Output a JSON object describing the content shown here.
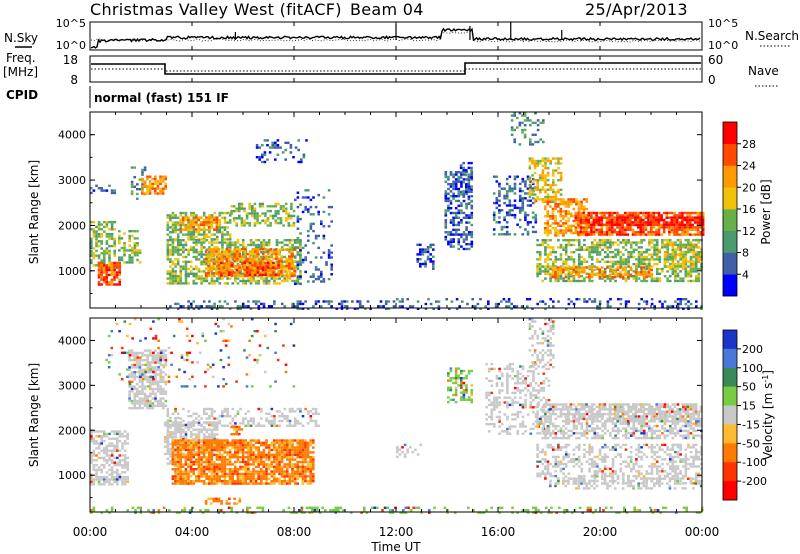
{
  "header": {
    "radar": "Christmas Valley West (fitACF)",
    "beam": "Beam 04",
    "date": "25/Apr/2013"
  },
  "params": {
    "nsky_label": "N.Sky",
    "nsearch_label": "N.Search",
    "nsky_ticks": [
      "10^5",
      "10^0"
    ],
    "nsearch_ticks": [
      "10^5",
      "10^0"
    ],
    "freq_label": "Freq.",
    "freq_unit": "[MHz]",
    "freq_ticks": [
      "18",
      "8"
    ],
    "nave_label": "Nave",
    "nave_ticks": [
      "60",
      "0"
    ],
    "cpid_label": "CPID",
    "cpid_text": "normal (fast) 151 IF"
  },
  "chart_data": [
    {
      "type": "heatmap",
      "name": "power",
      "ylabel": "Slant Range [km]",
      "xlabel": "",
      "ylim": [
        180,
        4500
      ],
      "yticks": [
        "1000",
        "2000",
        "3000",
        "4000"
      ],
      "colorbar": {
        "label": "Power [dB]",
        "ticks": [
          "4",
          "8",
          "12",
          "16",
          "20",
          "24",
          "28"
        ],
        "colors": [
          "#0000ff",
          "#3f60a8",
          "#4a9a70",
          "#66b04a",
          "#f2c20a",
          "#ff9a00",
          "#ff4a00",
          "#ff0000"
        ]
      }
    },
    {
      "type": "heatmap",
      "name": "velocity",
      "ylabel": "Slant Range [km]",
      "xlabel": "Time UT",
      "ylim": [
        180,
        4500
      ],
      "yticks": [
        "1000",
        "2000",
        "3000",
        "4000"
      ],
      "xticks": [
        "00:00",
        "04:00",
        "08:00",
        "12:00",
        "16:00",
        "20:00",
        "00:00"
      ],
      "colorbar": {
        "label": "Velocity [m s",
        "label_sup": "-1",
        "label_end": "]",
        "ticks": [
          "200",
          "100",
          "50",
          "15",
          "-15",
          "-50",
          "-100",
          "-200"
        ],
        "colors": [
          "#1a35c8",
          "#4a78d8",
          "#3a8a58",
          "#77cc44",
          "#c8c8c8",
          "#ffbb30",
          "#ff7a00",
          "#ff3300",
          "#ff0000"
        ]
      }
    }
  ]
}
